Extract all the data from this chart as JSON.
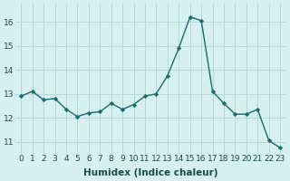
{
  "x": [
    0,
    1,
    2,
    3,
    4,
    5,
    6,
    7,
    8,
    9,
    10,
    11,
    12,
    13,
    14,
    15,
    16,
    17,
    18,
    19,
    20,
    21,
    22,
    23
  ],
  "y": [
    12.9,
    13.1,
    12.75,
    12.8,
    12.35,
    12.05,
    12.2,
    12.25,
    12.6,
    12.35,
    12.55,
    12.9,
    13.0,
    13.75,
    14.9,
    16.2,
    16.05,
    13.1,
    12.6,
    12.15,
    12.15,
    12.35,
    11.05,
    10.75
  ],
  "xlabel": "Humidex (Indice chaleur)",
  "ylabel": "",
  "xlim": [
    -0.5,
    23.5
  ],
  "ylim": [
    10.5,
    16.75
  ],
  "yticks": [
    11,
    12,
    13,
    14,
    15,
    16
  ],
  "xticks": [
    0,
    1,
    2,
    3,
    4,
    5,
    6,
    7,
    8,
    9,
    10,
    11,
    12,
    13,
    14,
    15,
    16,
    17,
    18,
    19,
    20,
    21,
    22,
    23
  ],
  "line_color": "#1a6b6b",
  "marker": "D",
  "marker_size": 2.2,
  "bg_color": "#d6f0f0",
  "grid_color": "#b8d8d8",
  "tick_fontsize": 6.5,
  "xlabel_fontsize": 7.5
}
